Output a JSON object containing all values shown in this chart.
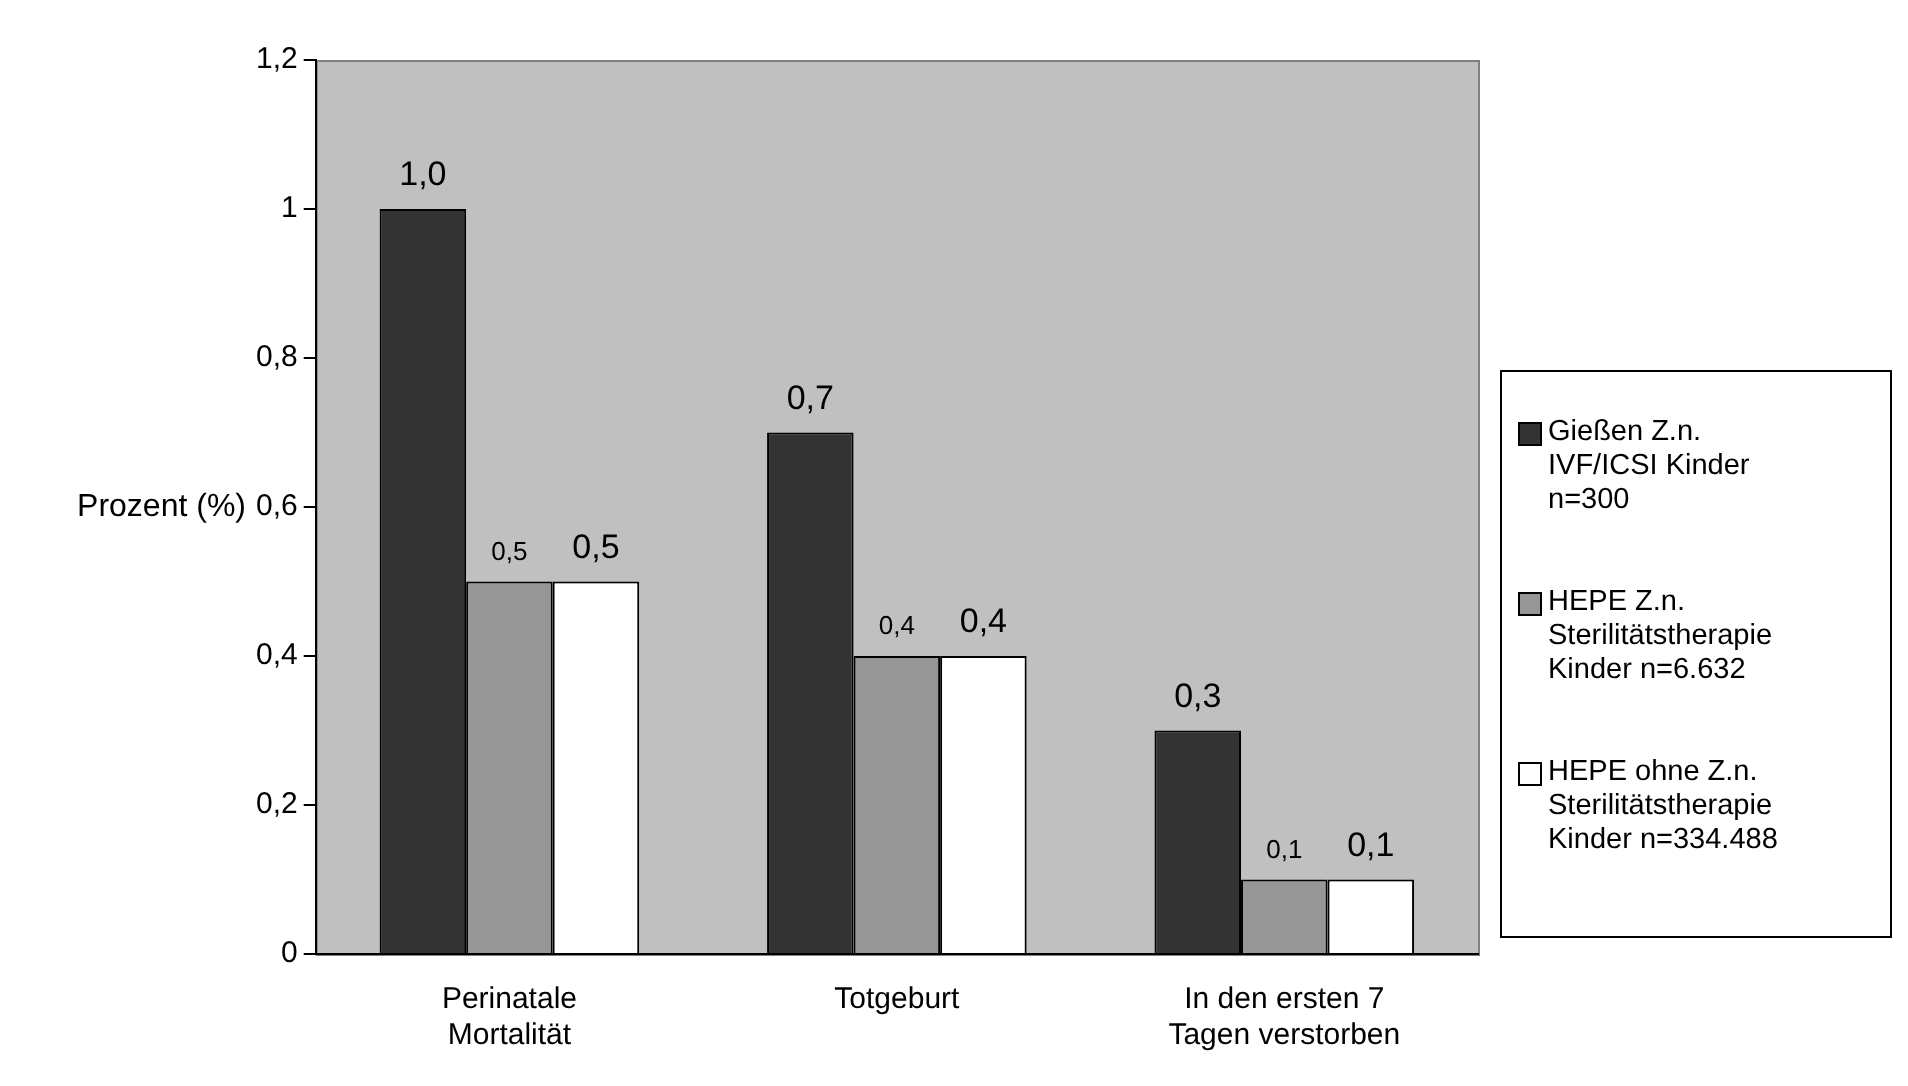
{
  "chart_data": {
    "type": "bar",
    "ylabel": "Prozent (%)",
    "categories": [
      "Perinatale Mortalität",
      "Totgeburt",
      "In den ersten 7 Tagen verstorben"
    ],
    "series": [
      {
        "name": "Gießen Z.n. IVF/ICSI Kinder n=300",
        "color": "#333333",
        "values": [
          1.0,
          0.7,
          0.3
        ],
        "value_labels": [
          "1,0",
          "0,7",
          "0,3"
        ]
      },
      {
        "name": "HEPE Z.n. Sterilitätstherapie Kinder n=6.632",
        "color": "#969696",
        "values": [
          0.5,
          0.4,
          0.1
        ],
        "value_labels": [
          "0,5",
          "0,4",
          "0,1"
        ]
      },
      {
        "name": "HEPE ohne Z.n. Sterilitätstherapie Kinder n=334.488",
        "color": "#ffffff",
        "values": [
          0.5,
          0.4,
          0.1
        ],
        "value_labels": [
          "0,5",
          "0,4",
          "0,1"
        ]
      }
    ],
    "ylim": [
      0,
      1.2
    ],
    "yticks": [
      0,
      {
        "value": 0.2,
        "label": "0,2"
      },
      {
        "value": 0.4,
        "label": "0,4"
      },
      {
        "value": 0.6,
        "label": "0,6"
      },
      {
        "value": 0.8,
        "label": "0,8"
      },
      1,
      {
        "value": 1.2,
        "label": "1,2"
      }
    ],
    "grid": false,
    "legend": "right"
  }
}
